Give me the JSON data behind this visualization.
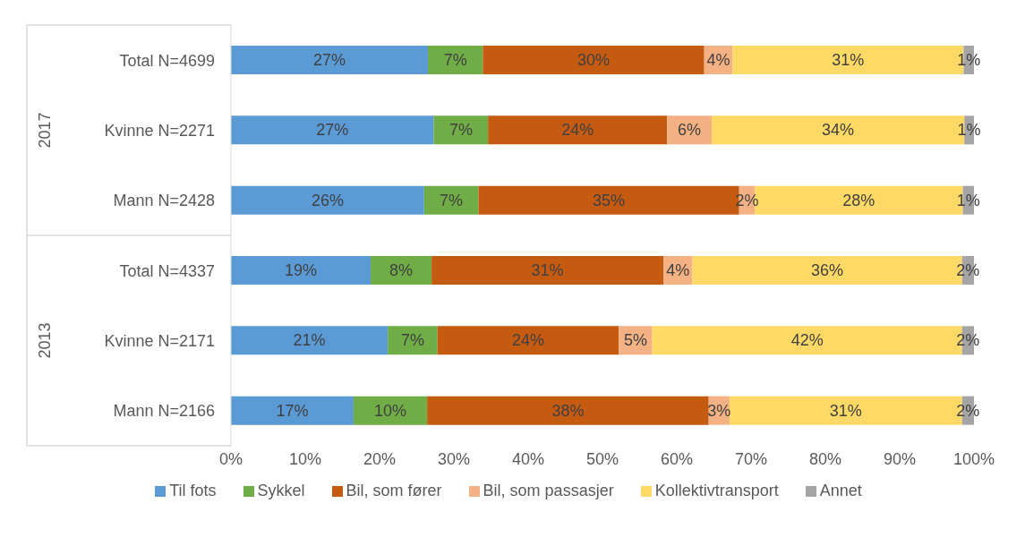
{
  "chart_data": {
    "type": "bar",
    "orientation": "horizontal",
    "stacked": true,
    "categories": [
      "Total N=4699",
      "Kvinne N=2271",
      "Mann N=2428",
      "Total N=4337",
      "Kvinne N=2171",
      "Mann N=2166"
    ],
    "annotations": [
      "2017",
      "2013"
    ],
    "series": [
      {
        "name": "Til fots",
        "color": "#5b9bd5",
        "values": [
          26.5,
          27.3,
          26.0,
          18.8,
          21.1,
          16.5
        ],
        "value_labels": [
          "27%",
          "27%",
          "26%",
          "19%",
          "21%",
          "17%"
        ]
      },
      {
        "name": "Sykkel",
        "color": "#70ad47",
        "values": [
          7.4,
          7.3,
          7.3,
          8.2,
          6.7,
          9.9
        ],
        "value_labels": [
          "7%",
          "7%",
          "7%",
          "8%",
          "7%",
          "10%"
        ]
      },
      {
        "name": "Bil, som fører",
        "color": "#c55a11",
        "values": [
          29.8,
          24.1,
          35.1,
          31.2,
          24.4,
          37.9
        ],
        "value_labels": [
          "30%",
          "24%",
          "35%",
          "31%",
          "24%",
          "38%"
        ]
      },
      {
        "name": "Bil, som passasjer",
        "color": "#f4b183",
        "values": [
          3.8,
          6.0,
          2.1,
          3.9,
          4.5,
          2.8
        ],
        "value_labels": [
          "4%",
          "6%",
          "2%",
          "4%",
          "5%",
          "3%"
        ]
      },
      {
        "name": "Kollektivtransport",
        "color": "#ffd966",
        "values": [
          31.1,
          34.0,
          28.0,
          36.3,
          41.7,
          31.3
        ],
        "value_labels": [
          "31%",
          "34%",
          "28%",
          "36%",
          "42%",
          "31%"
        ]
      },
      {
        "name": "Annet",
        "color": "#a5a5a5",
        "values": [
          1.4,
          1.3,
          1.5,
          1.6,
          1.6,
          1.6
        ],
        "value_labels": [
          "1%",
          "1%",
          "1%",
          "2%",
          "2%",
          "2%"
        ]
      }
    ],
    "xlim": [
      0,
      100
    ],
    "xticks": [
      {
        "value": 0,
        "label": "0%"
      },
      {
        "value": 10,
        "label": "10%"
      },
      {
        "value": 20,
        "label": "20%"
      },
      {
        "value": 30,
        "label": "30%"
      },
      {
        "value": 40,
        "label": "40%"
      },
      {
        "value": 50,
        "label": "50%"
      },
      {
        "value": 60,
        "label": "60%"
      },
      {
        "value": 70,
        "label": "70%"
      },
      {
        "value": 80,
        "label": "80%"
      },
      {
        "value": 90,
        "label": "90%"
      },
      {
        "value": 100,
        "label": "100%"
      }
    ],
    "grid": false,
    "legend": "bottom"
  }
}
